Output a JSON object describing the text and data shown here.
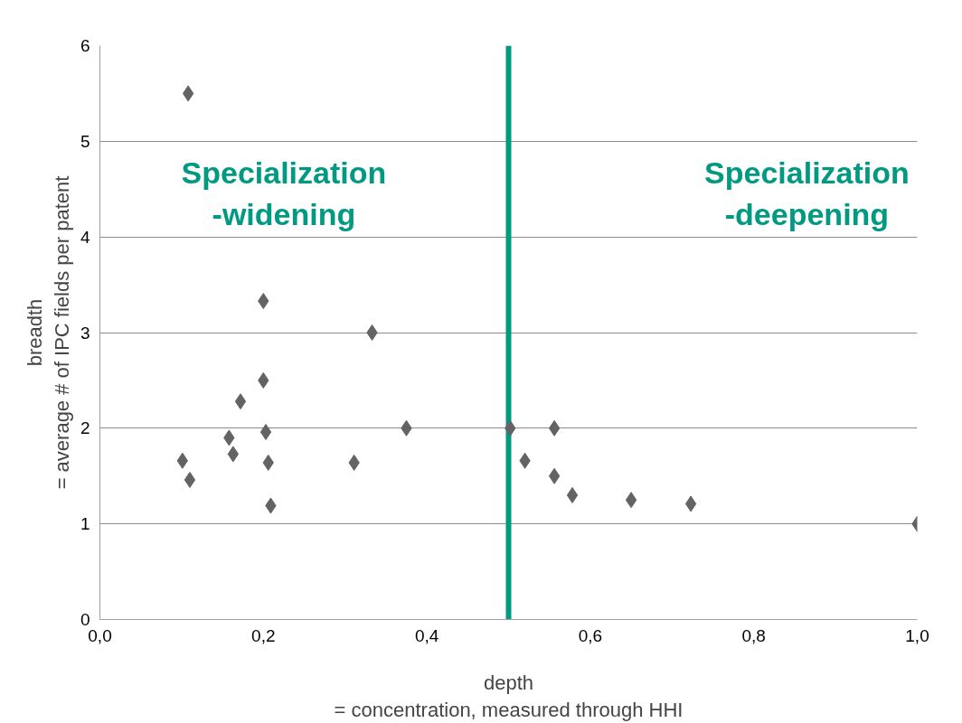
{
  "chart_data": {
    "type": "scatter",
    "xlabel": "depth\n= concentration, measured through HHI",
    "ylabel": "breadth\n= average # of IPC fields per patent",
    "annotations": [
      "Specialization\n-widening",
      "Specialization\n-deepening"
    ],
    "series": [
      {
        "color": "#636363",
        "x": [
          0.108,
          0.2,
          0.333,
          0.2,
          0.172,
          0.158,
          0.203,
          0.375,
          0.502,
          0.556,
          0.101,
          0.163,
          0.206,
          0.311,
          0.11,
          0.209,
          0.52,
          0.556,
          0.578,
          0.65,
          0.723,
          1.0
        ],
        "values": [
          5.5,
          3.33,
          3.0,
          2.5,
          2.28,
          1.9,
          1.96,
          2.0,
          2.0,
          2.0,
          1.66,
          1.73,
          1.64,
          1.64,
          1.46,
          1.19,
          1.66,
          1.5,
          1.3,
          1.25,
          1.21,
          1.0
        ]
      }
    ],
    "marker": "diamond",
    "grid": "y",
    "xlim": [
      0,
      1.0
    ],
    "ylim": [
      0,
      6
    ],
    "xticks": [
      {
        "value": 0,
        "label": "0,0"
      },
      {
        "value": 0.2,
        "label": "0,2"
      },
      {
        "value": 0.4,
        "label": "0,4"
      },
      {
        "value": 0.6,
        "label": "0,6"
      },
      {
        "value": 0.8,
        "label": "0,8"
      },
      {
        "value": 1.0,
        "label": "1,0"
      }
    ],
    "yticks": [
      0,
      1,
      2,
      3,
      4,
      5,
      6
    ],
    "ref_lines": [
      {
        "axis": "x",
        "value": 0.5,
        "color": "#009982"
      }
    ]
  }
}
